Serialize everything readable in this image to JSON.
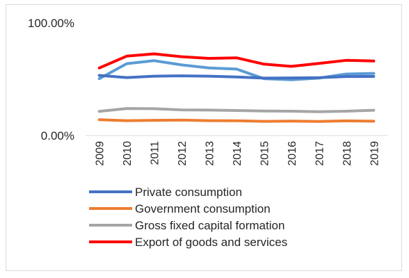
{
  "chart_data": {
    "type": "line",
    "title": "",
    "xlabel": "",
    "ylabel": "",
    "x": [
      "2009",
      "2010",
      "2011",
      "2012",
      "2013",
      "2014",
      "2015",
      "2016",
      "2017",
      "2018",
      "2019"
    ],
    "ylim": [
      0,
      1
    ],
    "y_ticks": [
      {
        "value": 1,
        "label": "100.00%"
      },
      {
        "value": 0,
        "label": "0.00%"
      }
    ],
    "grid": false,
    "legend_position": "bottom",
    "series": [
      {
        "name": "Private consumption",
        "color": "#4472C4",
        "values": [
          0.534,
          0.515,
          0.527,
          0.53,
          0.527,
          0.52,
          0.51,
          0.512,
          0.514,
          0.524,
          0.525
        ]
      },
      {
        "name": "Government consumption",
        "color": "#ED7D31",
        "values": [
          0.14,
          0.132,
          0.135,
          0.137,
          0.132,
          0.131,
          0.126,
          0.128,
          0.125,
          0.13,
          0.127
        ]
      },
      {
        "name": "Gross fixed capital formation",
        "color": "#A5A5A5",
        "values": [
          0.215,
          0.24,
          0.238,
          0.228,
          0.226,
          0.222,
          0.217,
          0.216,
          0.211,
          0.216,
          0.225
        ]
      },
      {
        "name": "Export of goods and services",
        "color": "#FF0000",
        "values": [
          0.6,
          0.705,
          0.725,
          0.7,
          0.685,
          0.69,
          0.634,
          0.614,
          0.64,
          0.668,
          0.662
        ]
      },
      {
        "name": "",
        "color": "#5B9BD5",
        "values": [
          0.505,
          0.638,
          0.665,
          0.627,
          0.6,
          0.59,
          0.505,
          0.495,
          0.51,
          0.546,
          0.552
        ]
      }
    ]
  }
}
